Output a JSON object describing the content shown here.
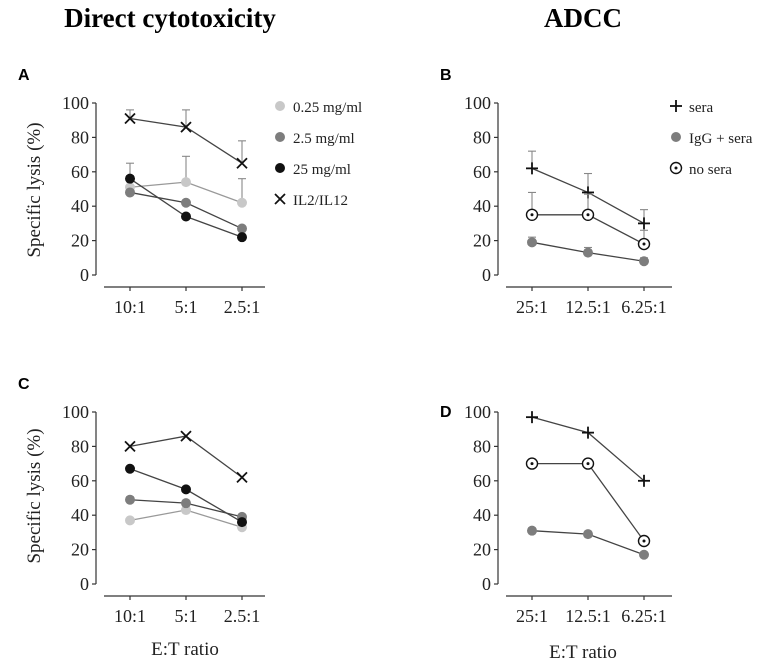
{
  "headings": {
    "left": "Direct cytotoxicity",
    "right": "ADCC"
  },
  "shared_xlabel": "E:T ratio",
  "colors": {
    "light": "#c8c8c8",
    "mid": "#7d7d7d",
    "dark": "#111111",
    "cross": "#111111",
    "line_mean": "#444444",
    "line_light": "#999999",
    "errbar": "#888888"
  },
  "chart_data": [
    {
      "panel": "A",
      "type": "line",
      "categories": [
        "10:1",
        "5:1",
        "2.5:1"
      ],
      "ylabel": "Specific lysis (%)",
      "xlabel": "",
      "ylim": [
        0,
        100
      ],
      "yticks": [
        0,
        20,
        40,
        60,
        80,
        100
      ],
      "legend_position": "top-right",
      "series": [
        {
          "name": "0.25 mg/ml",
          "marker": "dot",
          "color": "#c8c8c8",
          "values": [
            51,
            54,
            42
          ],
          "errors": [
            14,
            15,
            14
          ]
        },
        {
          "name": "2.5 mg/ml",
          "marker": "dot",
          "color": "#7d7d7d",
          "values": [
            48,
            42,
            27
          ],
          "errors": [
            0,
            0,
            0
          ]
        },
        {
          "name": "25 mg/ml",
          "marker": "dot",
          "color": "#111111",
          "values": [
            56,
            34,
            22
          ],
          "errors": [
            0,
            0,
            0
          ]
        },
        {
          "name": "IL2/IL12",
          "marker": "x",
          "color": "#111111",
          "values": [
            91,
            86,
            65
          ],
          "errors": [
            5,
            10,
            13
          ]
        }
      ]
    },
    {
      "panel": "B",
      "type": "line",
      "categories": [
        "25:1",
        "12.5:1",
        "6.25:1"
      ],
      "ylabel": "",
      "xlabel": "",
      "ylim": [
        0,
        100
      ],
      "yticks": [
        0,
        20,
        40,
        60,
        80,
        100
      ],
      "legend_position": "top-right",
      "series": [
        {
          "name": "sera",
          "marker": "plus",
          "color": "#111111",
          "values": [
            62,
            48,
            30
          ],
          "errors": [
            10,
            11,
            8
          ]
        },
        {
          "name": "IgG + sera",
          "marker": "dot",
          "color": "#7d7d7d",
          "values": [
            19,
            13,
            8
          ],
          "errors": [
            3,
            3,
            2
          ]
        },
        {
          "name": "no sera",
          "marker": "circledot",
          "color": "#111111",
          "values": [
            35,
            35,
            18
          ],
          "errors": [
            13,
            12,
            8
          ]
        }
      ]
    },
    {
      "panel": "C",
      "type": "line",
      "categories": [
        "10:1",
        "5:1",
        "2.5:1"
      ],
      "ylabel": "Specific lysis (%)",
      "xlabel": "",
      "ylim": [
        0,
        100
      ],
      "yticks": [
        0,
        20,
        40,
        60,
        80,
        100
      ],
      "series": [
        {
          "name": "0.25 mg/ml",
          "marker": "dot",
          "color": "#c8c8c8",
          "values": [
            37,
            43,
            33
          ]
        },
        {
          "name": "2.5 mg/ml",
          "marker": "dot",
          "color": "#7d7d7d",
          "values": [
            49,
            47,
            39
          ]
        },
        {
          "name": "25 mg/ml",
          "marker": "dot",
          "color": "#111111",
          "values": [
            67,
            55,
            36
          ]
        },
        {
          "name": "IL2/IL12",
          "marker": "x",
          "color": "#111111",
          "values": [
            80,
            86,
            62
          ]
        }
      ]
    },
    {
      "panel": "D",
      "type": "line",
      "categories": [
        "25:1",
        "12.5:1",
        "6.25:1"
      ],
      "ylabel": "",
      "xlabel": "",
      "ylim": [
        0,
        100
      ],
      "yticks": [
        0,
        20,
        40,
        60,
        80,
        100
      ],
      "series": [
        {
          "name": "sera",
          "marker": "plus",
          "color": "#111111",
          "values": [
            97,
            88,
            60
          ]
        },
        {
          "name": "IgG + sera",
          "marker": "dot",
          "color": "#7d7d7d",
          "values": [
            31,
            29,
            17
          ]
        },
        {
          "name": "no sera",
          "marker": "circledot",
          "color": "#111111",
          "values": [
            70,
            70,
            25
          ]
        }
      ]
    }
  ]
}
